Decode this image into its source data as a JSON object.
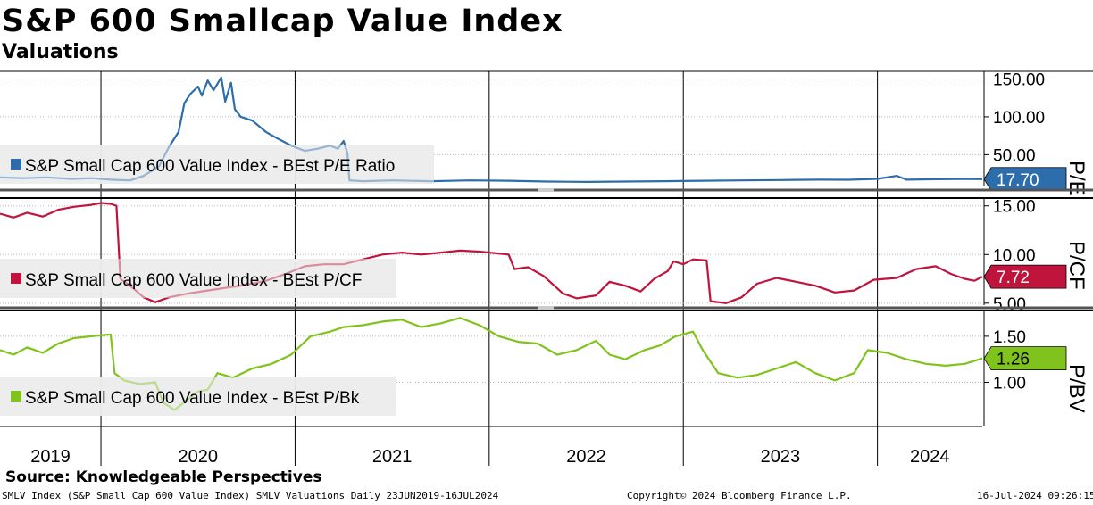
{
  "header": {
    "title": "S&P 600 Smallcap Value Index",
    "subtitle": "Valuations"
  },
  "footer": {
    "source": "Source: Knowledgeable Perspectives",
    "security": "SMLV Index (S&P Small Cap 600 Value Index) SMLV Valuations  Daily 23JUN2019-16JUL2024",
    "copyright": "Copyright© 2024 Bloomberg Finance L.P.",
    "timestamp": "16-Jul-2024 09:26:15"
  },
  "chart_data": {
    "type": "line",
    "x_axis": {
      "start": 2019.48,
      "end": 2024.54,
      "years": [
        "2019",
        "2020",
        "2021",
        "2022",
        "2023",
        "2024"
      ]
    },
    "panels": [
      {
        "id": "pe",
        "axis_title": "P/E",
        "legend": "S&P Small Cap 600 Value Index - BEst P/E Ratio",
        "color": "#2e6dab",
        "last_value": 17.7,
        "last_label": "17.70",
        "ylim": [
          8,
          160
        ],
        "ticks": [
          {
            "v": 50,
            "label": "50.00"
          },
          {
            "v": 100,
            "label": "100.00"
          },
          {
            "v": 150,
            "label": "150.00"
          }
        ],
        "series": [
          [
            2019.48,
            20
          ],
          [
            2019.6,
            19
          ],
          [
            2019.72,
            20
          ],
          [
            2019.85,
            18
          ],
          [
            2019.95,
            19
          ],
          [
            2020.05,
            17
          ],
          [
            2020.15,
            16
          ],
          [
            2020.22,
            22
          ],
          [
            2020.3,
            35
          ],
          [
            2020.35,
            60
          ],
          [
            2020.4,
            80
          ],
          [
            2020.43,
            118
          ],
          [
            2020.46,
            130
          ],
          [
            2020.5,
            140
          ],
          [
            2020.52,
            128
          ],
          [
            2020.55,
            148
          ],
          [
            2020.58,
            135
          ],
          [
            2020.62,
            152
          ],
          [
            2020.64,
            120
          ],
          [
            2020.67,
            145
          ],
          [
            2020.69,
            110
          ],
          [
            2020.72,
            100
          ],
          [
            2020.78,
            95
          ],
          [
            2020.85,
            80
          ],
          [
            2020.92,
            70
          ],
          [
            2020.98,
            62
          ],
          [
            2021.05,
            55
          ],
          [
            2021.12,
            58
          ],
          [
            2021.18,
            62
          ],
          [
            2021.22,
            58
          ],
          [
            2021.25,
            68
          ],
          [
            2021.27,
            52
          ],
          [
            2021.28,
            16
          ],
          [
            2021.35,
            15
          ],
          [
            2021.5,
            16
          ],
          [
            2021.7,
            15
          ],
          [
            2021.9,
            16
          ],
          [
            2022.1,
            15.5
          ],
          [
            2022.3,
            14.5
          ],
          [
            2022.5,
            14
          ],
          [
            2022.7,
            14.5
          ],
          [
            2022.9,
            15
          ],
          [
            2023.1,
            15.5
          ],
          [
            2023.3,
            16
          ],
          [
            2023.5,
            16.5
          ],
          [
            2023.7,
            17
          ],
          [
            2023.85,
            16.8
          ],
          [
            2024.0,
            18
          ],
          [
            2024.1,
            22
          ],
          [
            2024.15,
            17
          ],
          [
            2024.3,
            17.5
          ],
          [
            2024.45,
            17.8
          ],
          [
            2024.54,
            17.7
          ]
        ]
      },
      {
        "id": "pcf",
        "axis_title": "P/CF",
        "legend": "S&P Small Cap 600 Value Index - BEst P/CF",
        "color": "#c0143c",
        "last_value": 7.72,
        "last_label": "7.72",
        "ylim": [
          4.8,
          15.8
        ],
        "ticks": [
          {
            "v": 5,
            "label": "5.00"
          },
          {
            "v": 10,
            "label": "10.00"
          },
          {
            "v": 15,
            "label": "15.00"
          }
        ],
        "series": [
          [
            2019.48,
            14.2
          ],
          [
            2019.55,
            13.8
          ],
          [
            2019.62,
            14.3
          ],
          [
            2019.7,
            13.9
          ],
          [
            2019.78,
            14.6
          ],
          [
            2019.86,
            14.9
          ],
          [
            2019.95,
            15.1
          ],
          [
            2020.0,
            15.3
          ],
          [
            2020.05,
            15.2
          ],
          [
            2020.08,
            15.0
          ],
          [
            2020.1,
            7.5
          ],
          [
            2020.15,
            6.8
          ],
          [
            2020.22,
            5.6
          ],
          [
            2020.28,
            5.1
          ],
          [
            2020.35,
            5.6
          ],
          [
            2020.45,
            6.0
          ],
          [
            2020.55,
            6.3
          ],
          [
            2020.65,
            6.6
          ],
          [
            2020.75,
            6.9
          ],
          [
            2020.85,
            7.3
          ],
          [
            2020.95,
            8.0
          ],
          [
            2021.05,
            8.8
          ],
          [
            2021.15,
            9.0
          ],
          [
            2021.25,
            9.0
          ],
          [
            2021.35,
            9.5
          ],
          [
            2021.45,
            10.0
          ],
          [
            2021.55,
            10.2
          ],
          [
            2021.65,
            10.0
          ],
          [
            2021.75,
            10.2
          ],
          [
            2021.85,
            10.4
          ],
          [
            2021.95,
            10.3
          ],
          [
            2022.05,
            10.1
          ],
          [
            2022.1,
            10.0
          ],
          [
            2022.13,
            8.5
          ],
          [
            2022.2,
            8.7
          ],
          [
            2022.28,
            7.8
          ],
          [
            2022.38,
            6.0
          ],
          [
            2022.45,
            5.5
          ],
          [
            2022.55,
            5.8
          ],
          [
            2022.62,
            7.2
          ],
          [
            2022.7,
            6.8
          ],
          [
            2022.78,
            6.2
          ],
          [
            2022.85,
            7.5
          ],
          [
            2022.92,
            8.3
          ],
          [
            2022.95,
            9.3
          ],
          [
            2023.0,
            9.0
          ],
          [
            2023.05,
            9.5
          ],
          [
            2023.12,
            9.4
          ],
          [
            2023.14,
            5.2
          ],
          [
            2023.22,
            5.0
          ],
          [
            2023.3,
            5.6
          ],
          [
            2023.38,
            7.0
          ],
          [
            2023.48,
            7.6
          ],
          [
            2023.58,
            7.2
          ],
          [
            2023.68,
            6.8
          ],
          [
            2023.78,
            6.1
          ],
          [
            2023.88,
            6.3
          ],
          [
            2023.98,
            7.4
          ],
          [
            2024.1,
            7.6
          ],
          [
            2024.2,
            8.5
          ],
          [
            2024.3,
            8.8
          ],
          [
            2024.38,
            8.0
          ],
          [
            2024.45,
            7.5
          ],
          [
            2024.5,
            7.3
          ],
          [
            2024.54,
            7.72
          ]
        ]
      },
      {
        "id": "pbv",
        "axis_title": "P/BV",
        "legend": "S&P Small Cap 600 Value Index - BEst P/Bk",
        "color": "#7fc31c",
        "last_value": 1.26,
        "last_label": "1.26",
        "ylim": [
          0.52,
          1.78
        ],
        "ticks": [
          {
            "v": 1.0,
            "label": "1.00"
          },
          {
            "v": 1.5,
            "label": "1.50"
          }
        ],
        "series": [
          [
            2019.48,
            1.35
          ],
          [
            2019.55,
            1.3
          ],
          [
            2019.62,
            1.38
          ],
          [
            2019.7,
            1.32
          ],
          [
            2019.78,
            1.42
          ],
          [
            2019.86,
            1.48
          ],
          [
            2019.95,
            1.5
          ],
          [
            2020.05,
            1.52
          ],
          [
            2020.07,
            1.1
          ],
          [
            2020.12,
            1.02
          ],
          [
            2020.2,
            0.98
          ],
          [
            2020.28,
            1.0
          ],
          [
            2020.32,
            0.78
          ],
          [
            2020.38,
            0.7
          ],
          [
            2020.45,
            0.82
          ],
          [
            2020.5,
            0.9
          ],
          [
            2020.55,
            0.92
          ],
          [
            2020.6,
            1.1
          ],
          [
            2020.68,
            1.05
          ],
          [
            2020.78,
            1.15
          ],
          [
            2020.88,
            1.2
          ],
          [
            2020.98,
            1.3
          ],
          [
            2021.08,
            1.5
          ],
          [
            2021.18,
            1.55
          ],
          [
            2021.25,
            1.6
          ],
          [
            2021.35,
            1.62
          ],
          [
            2021.45,
            1.66
          ],
          [
            2021.55,
            1.68
          ],
          [
            2021.65,
            1.6
          ],
          [
            2021.75,
            1.64
          ],
          [
            2021.85,
            1.7
          ],
          [
            2021.95,
            1.62
          ],
          [
            2022.05,
            1.5
          ],
          [
            2022.15,
            1.44
          ],
          [
            2022.25,
            1.42
          ],
          [
            2022.35,
            1.3
          ],
          [
            2022.45,
            1.35
          ],
          [
            2022.55,
            1.45
          ],
          [
            2022.62,
            1.3
          ],
          [
            2022.7,
            1.25
          ],
          [
            2022.8,
            1.35
          ],
          [
            2022.88,
            1.4
          ],
          [
            2022.96,
            1.5
          ],
          [
            2023.05,
            1.55
          ],
          [
            2023.1,
            1.35
          ],
          [
            2023.18,
            1.1
          ],
          [
            2023.28,
            1.05
          ],
          [
            2023.38,
            1.08
          ],
          [
            2023.48,
            1.15
          ],
          [
            2023.58,
            1.22
          ],
          [
            2023.68,
            1.1
          ],
          [
            2023.78,
            1.02
          ],
          [
            2023.88,
            1.1
          ],
          [
            2023.95,
            1.35
          ],
          [
            2024.05,
            1.32
          ],
          [
            2024.15,
            1.25
          ],
          [
            2024.25,
            1.2
          ],
          [
            2024.35,
            1.18
          ],
          [
            2024.45,
            1.2
          ],
          [
            2024.54,
            1.26
          ]
        ]
      }
    ]
  }
}
